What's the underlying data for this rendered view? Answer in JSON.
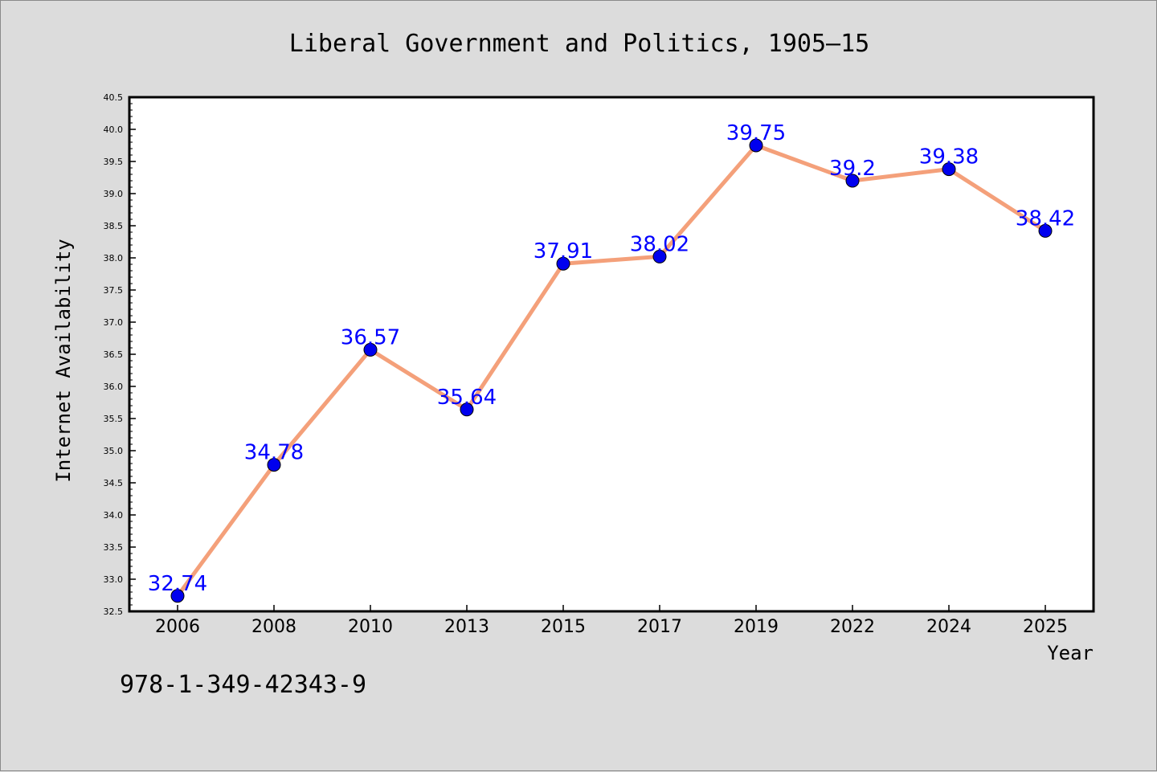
{
  "chart_data": {
    "type": "line",
    "title": "Liberal Government and Politics, 1905–15",
    "xlabel": "Year",
    "ylabel": "Internet Availability",
    "categories": [
      "2006",
      "2008",
      "2010",
      "2013",
      "2015",
      "2017",
      "2019",
      "2022",
      "2024",
      "2025"
    ],
    "series": [
      {
        "values": [
          32.74,
          34.78,
          36.57,
          35.64,
          37.91,
          38.02,
          39.75,
          39.2,
          39.38,
          38.42
        ],
        "labels": [
          "32.74",
          "34.78",
          "36.57",
          "35.64",
          "37.91",
          "38.02",
          "39.75",
          "39.2",
          "39.38",
          "38.42"
        ],
        "line_color": "#f4a07a",
        "marker_color": "#0000ee"
      }
    ],
    "ylim": [
      32.5,
      40.5
    ],
    "yticks": [
      "32.5",
      "33.0",
      "33.5",
      "34.0",
      "34.5",
      "35.0",
      "35.5",
      "36.0",
      "36.5",
      "37.0",
      "37.5",
      "38.0",
      "38.5",
      "39.0",
      "39.5",
      "40.0",
      "40.5"
    ],
    "grid": false,
    "legend": "none",
    "data_label_color": "#0000ff"
  },
  "footer": {
    "isbn": "978-1-349-42343-9"
  }
}
